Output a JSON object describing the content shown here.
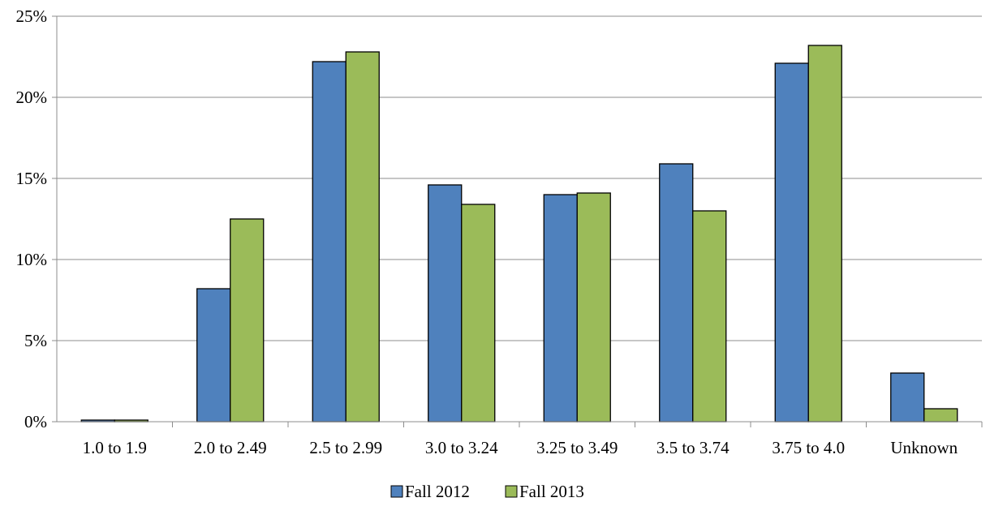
{
  "chart_data": {
    "type": "bar",
    "title": "",
    "xlabel": "",
    "ylabel": "",
    "categories": [
      "1.0 to 1.9",
      "2.0 to 2.49",
      "2.5 to 2.99",
      "3.0 to 3.24",
      "3.25 to 3.49",
      "3.5 to 3.74",
      "3.75 to 4.0",
      "Unknown"
    ],
    "series": [
      {
        "name": "Fall 2012",
        "color": "#4f81bd",
        "values": [
          0.1,
          8.2,
          22.2,
          14.6,
          14.0,
          15.9,
          22.1,
          3.0
        ]
      },
      {
        "name": "Fall 2013",
        "color": "#9bbb59",
        "values": [
          0.1,
          12.5,
          22.8,
          13.4,
          14.1,
          13.0,
          23.2,
          0.8
        ]
      }
    ],
    "ylim": [
      0,
      25
    ],
    "y_ticks": [
      0,
      5,
      10,
      15,
      20,
      25
    ],
    "y_tick_labels": [
      "0%",
      "5%",
      "10%",
      "15%",
      "20%",
      "25%"
    ],
    "grid": true,
    "gridline_color": "#8c8c8c",
    "bar_outline_color": "#000000",
    "legend_position": "bottom"
  }
}
